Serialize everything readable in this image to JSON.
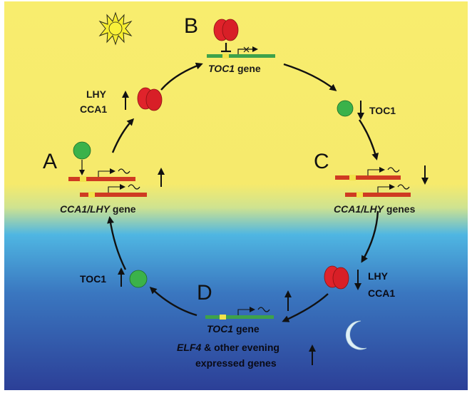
{
  "colors": {
    "sky_day": "#f7ec6c",
    "sky_night_top": "#5aa6d8",
    "sky_night_bottom": "#2e3f9a",
    "protein_red": "#e0232b",
    "protein_green": "#3bb24a",
    "gene_red": "#cf3b22",
    "gene_green": "#3ea24a",
    "promoter_yellow": "#f2e24a",
    "arrow": "#111111"
  },
  "icons": {
    "sun": "sun-icon",
    "moon": "crescent-moon-icon"
  },
  "steps": {
    "A": "A",
    "B": "B",
    "C": "C",
    "D": "D"
  },
  "labels": {
    "lhy_top": "LHY",
    "cca1_top": "CCA1",
    "toc1_right": "TOC1",
    "toc1_gene_top_italic": "TOC1",
    "toc1_gene_top_rest": " gene",
    "cca1_lhy_left_italic": "CCA1/LHY",
    "cca1_lhy_left_rest": " gene",
    "cca1_lhy_right_italic": "CCA1/LHY",
    "cca1_lhy_right_rest": " genes",
    "lhy_bottom": "LHY",
    "cca1_bottom": "CCA1",
    "toc1_left": "TOC1",
    "toc1_gene_bottom_italic": "TOC1",
    "toc1_gene_bottom_rest": " gene",
    "elf4_italic": "ELF4",
    "elf4_rest": " & other evening",
    "expressed_genes": "expressed genes"
  }
}
